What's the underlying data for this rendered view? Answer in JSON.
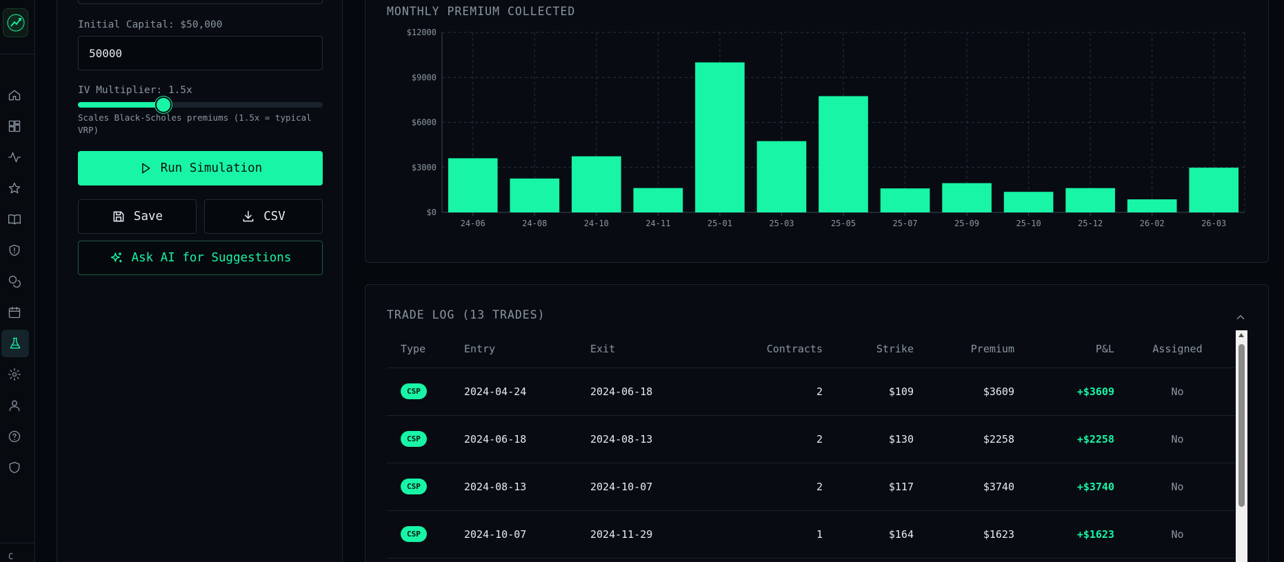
{
  "rail": {
    "items": [
      {
        "icon": "home-icon"
      },
      {
        "icon": "dashboard-icon"
      },
      {
        "icon": "activity-icon"
      },
      {
        "icon": "star-icon"
      },
      {
        "icon": "book-icon"
      },
      {
        "icon": "shield-alert-icon"
      },
      {
        "icon": "coins-icon"
      },
      {
        "icon": "calendar-icon"
      },
      {
        "icon": "flask-icon",
        "active": true
      },
      {
        "icon": "settings-icon"
      },
      {
        "icon": "user-icon"
      },
      {
        "icon": "help-icon"
      },
      {
        "icon": "shield-icon"
      }
    ],
    "more": "C"
  },
  "config": {
    "capital_label": "Initial Capital: $50,000",
    "capital_value": "50000",
    "iv_label": "IV Multiplier: 1.5x",
    "iv_level": 0.35,
    "iv_hint": "Scales Black-Scholes premiums (1.5x = typical VRP)",
    "run_label": "Run Simulation",
    "save_label": "Save",
    "csv_label": "CSV",
    "ai_label": "Ask AI for Suggestions"
  },
  "colors": {
    "accent": "#18f5a6",
    "background": "#05080c",
    "panel": "#080c12",
    "muted": "#8b95a1"
  },
  "premium_card": {
    "title": "MONTHLY PREMIUM COLLECTED"
  },
  "chart_data": {
    "type": "bar",
    "categories": [
      "24-06",
      "24-08",
      "24-10",
      "24-11",
      "25-01",
      "25-03",
      "25-05",
      "25-07",
      "25-09",
      "25-10",
      "25-12",
      "26-02",
      "26-03"
    ],
    "values": [
      3609,
      2258,
      3740,
      1623,
      10000,
      4750,
      7750,
      1600,
      1950,
      1370,
      1620,
      870,
      2980
    ],
    "ylim": [
      0,
      12000
    ],
    "yticks": [
      0,
      3000,
      6000,
      9000,
      12000
    ],
    "ytick_labels": [
      "$0",
      "$3000",
      "$6000",
      "$9000",
      "$12000"
    ],
    "grid": true,
    "color": "#18f5a6"
  },
  "trade_log": {
    "title": "TRADE LOG (13 TRADES)",
    "columns": [
      "Type",
      "Entry",
      "Exit",
      "Contracts",
      "Strike",
      "Premium",
      "P&L",
      "Assigned"
    ],
    "rows": [
      {
        "type": "CSP",
        "entry": "2024-04-24",
        "exit": "2024-06-18",
        "contracts": "2",
        "strike": "$109",
        "premium": "$3609",
        "pnl": "+$3609",
        "assigned": "No"
      },
      {
        "type": "CSP",
        "entry": "2024-06-18",
        "exit": "2024-08-13",
        "contracts": "2",
        "strike": "$130",
        "premium": "$2258",
        "pnl": "+$2258",
        "assigned": "No"
      },
      {
        "type": "CSP",
        "entry": "2024-08-13",
        "exit": "2024-10-07",
        "contracts": "2",
        "strike": "$117",
        "premium": "$3740",
        "pnl": "+$3740",
        "assigned": "No"
      },
      {
        "type": "CSP",
        "entry": "2024-10-07",
        "exit": "2024-11-29",
        "contracts": "1",
        "strike": "$164",
        "premium": "$1623",
        "pnl": "+$1623",
        "assigned": "No"
      }
    ]
  }
}
